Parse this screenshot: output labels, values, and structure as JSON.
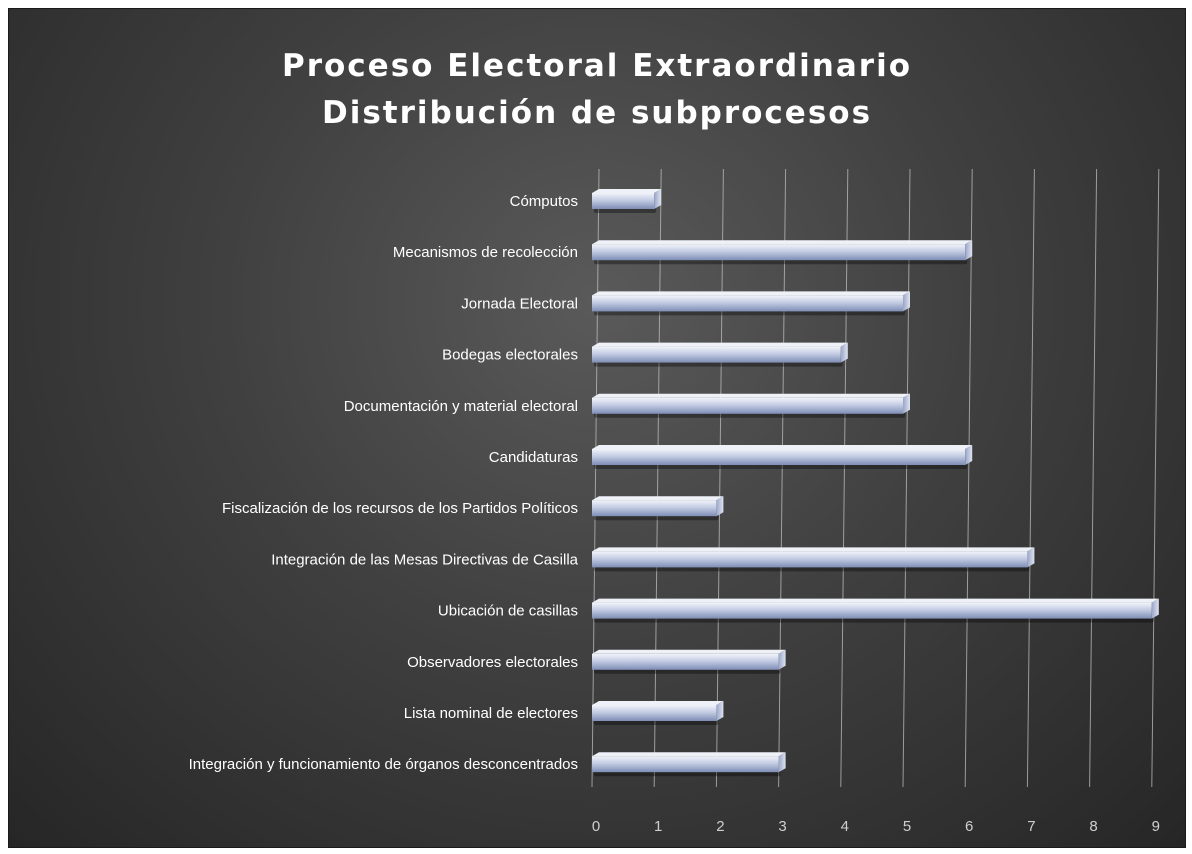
{
  "chart_data": {
    "type": "bar",
    "orientation": "horizontal",
    "title": "Proceso Electoral Extraordinario",
    "subtitle": "Distribución de subprocesos",
    "categories": [
      "Cómputos",
      "Mecanismos de recolección",
      "Jornada Electoral",
      "Bodegas electorales",
      "Documentación y material electoral",
      "Candidaturas",
      "Fiscalización de los recursos de los Partidos Políticos",
      "Integración de las Mesas Directivas de Casilla",
      "Ubicación de casillas",
      "Observadores electorales",
      "Lista nominal de electores",
      "Integración y funcionamiento de órganos desconcentrados"
    ],
    "values": [
      1,
      6,
      5,
      4,
      5,
      6,
      2,
      7,
      9,
      3,
      2,
      3
    ],
    "xlim": [
      0,
      9
    ],
    "x_ticks": [
      "0",
      "1",
      "2",
      "3",
      "4",
      "5",
      "6",
      "7",
      "8",
      "9"
    ],
    "grid": true,
    "colors": {
      "bar_light": "#e4e9f5",
      "bar_mid": "#b3bedb",
      "bar_dark": "#7e8cb6",
      "gridline": "#bfbfbf",
      "text": "#ffffff"
    }
  }
}
